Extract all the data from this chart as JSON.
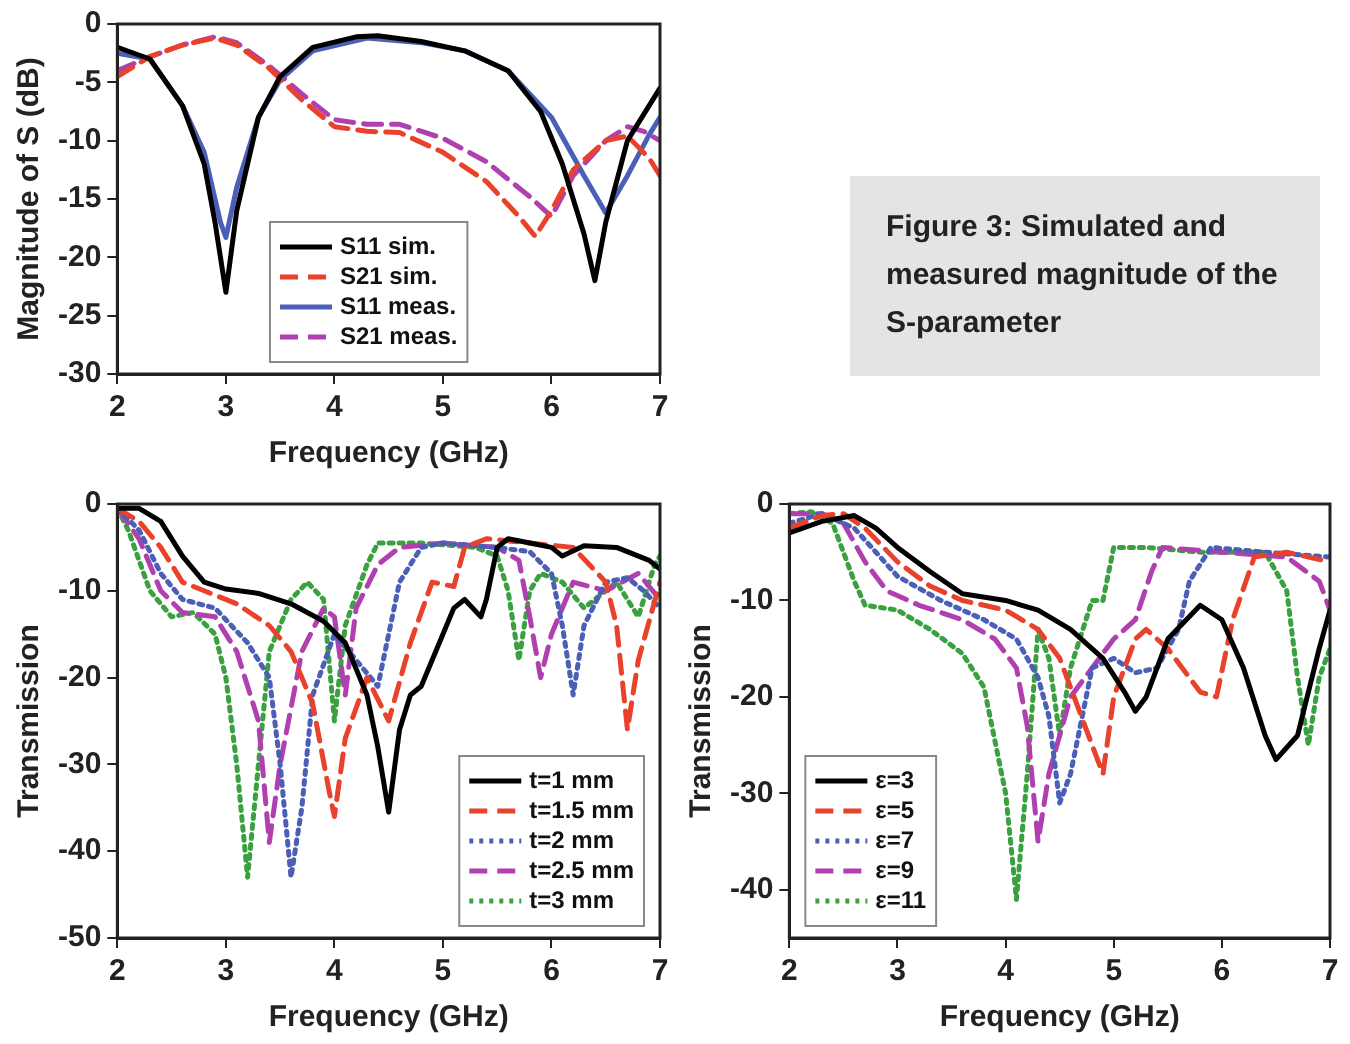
{
  "chart_data": [
    {
      "type": "line",
      "xlabel": "Frequency (GHz)",
      "ylabel": "Magnitude of S (dB)",
      "xlim": [
        2,
        7
      ],
      "ylim": [
        -30,
        0
      ],
      "xticks": [
        2,
        3,
        4,
        5,
        6,
        7
      ],
      "yticks": [
        0,
        -5,
        -10,
        -15,
        -20,
        -25,
        -30
      ],
      "grid": false,
      "legend": "bottom",
      "series": [
        {
          "name": "S11 sim.",
          "color": "#000000",
          "line_style": "solid",
          "x": [
            2,
            2.3,
            2.6,
            2.8,
            2.9,
            3.0,
            3.1,
            3.3,
            3.5,
            3.8,
            4.2,
            4.4,
            4.8,
            5.2,
            5.6,
            5.9,
            6.1,
            6.3,
            6.4,
            6.5,
            6.7,
            6.9,
            7
          ],
          "values": [
            -2,
            -3,
            -7,
            -12,
            -17,
            -23,
            -16,
            -8,
            -4.5,
            -2,
            -1.1,
            -1,
            -1.5,
            -2.3,
            -4,
            -7.5,
            -12,
            -18,
            -22,
            -17,
            -10,
            -7,
            -5.5
          ]
        },
        {
          "name": "S21 sim.",
          "color": "#e8412c",
          "line_style": "dashed",
          "x": [
            2,
            2.3,
            2.6,
            2.9,
            3.1,
            3.4,
            3.7,
            4.0,
            4.3,
            4.6,
            5.0,
            5.4,
            5.7,
            5.85,
            6.0,
            6.2,
            6.5,
            6.7,
            6.9,
            7
          ],
          "values": [
            -4.5,
            -2.8,
            -1.8,
            -1.2,
            -1.8,
            -3.8,
            -6.5,
            -8.8,
            -9.2,
            -9.3,
            -11,
            -13.5,
            -16.5,
            -18.2,
            -16,
            -12.5,
            -10,
            -9.6,
            -11.5,
            -13
          ]
        },
        {
          "name": "S11 meas.",
          "color": "#4a5fb5",
          "line_style": "solid",
          "x": [
            2,
            2.3,
            2.6,
            2.8,
            2.95,
            3.0,
            3.1,
            3.3,
            3.5,
            3.8,
            4.3,
            4.8,
            5.2,
            5.6,
            6.0,
            6.3,
            6.5,
            6.7,
            6.9,
            7
          ],
          "values": [
            -2.5,
            -3,
            -7,
            -11,
            -17,
            -18.3,
            -14,
            -8,
            -4.8,
            -2.3,
            -1.2,
            -1.6,
            -2.3,
            -4,
            -8,
            -13,
            -16.2,
            -13,
            -9.5,
            -8
          ]
        },
        {
          "name": "S21 meas.",
          "color": "#b040b0",
          "line_style": "dashed",
          "x": [
            2,
            2.3,
            2.6,
            2.9,
            3.1,
            3.4,
            3.7,
            4.0,
            4.3,
            4.6,
            5.0,
            5.4,
            5.8,
            6.0,
            6.2,
            6.5,
            6.7,
            6.85,
            7
          ],
          "values": [
            -4,
            -2.8,
            -1.8,
            -1.1,
            -1.6,
            -3.6,
            -6,
            -8.2,
            -8.6,
            -8.6,
            -9.8,
            -11.8,
            -14.8,
            -16.5,
            -13,
            -10,
            -8.8,
            -9.2,
            -10
          ]
        }
      ]
    },
    {
      "type": "other",
      "title": "Figure 3: Simulated and measured magnitude of the S-parameter"
    },
    {
      "type": "line",
      "xlabel": "Frequency (GHz)",
      "ylabel": "Transmission",
      "xlim": [
        2,
        7
      ],
      "ylim": [
        -50,
        0
      ],
      "xticks": [
        2,
        3,
        4,
        5,
        6,
        7
      ],
      "yticks": [
        0,
        -10,
        -20,
        -30,
        -40,
        -50
      ],
      "grid": false,
      "legend": "bottom right",
      "series": [
        {
          "name": "t=1 mm",
          "color": "#000000",
          "line_style": "solid",
          "x": [
            2,
            2.2,
            2.4,
            2.6,
            2.8,
            3.0,
            3.3,
            3.6,
            3.9,
            4.1,
            4.3,
            4.4,
            4.5,
            4.6,
            4.7,
            4.8,
            4.9,
            5.1,
            5.2,
            5.35,
            5.4,
            5.5,
            5.6,
            5.8,
            6.0,
            6.1,
            6.3,
            6.6,
            6.9,
            7
          ],
          "values": [
            -0.5,
            -0.5,
            -2,
            -6,
            -9,
            -9.8,
            -10.3,
            -11.5,
            -13.5,
            -16,
            -22,
            -28,
            -35.5,
            -26,
            -22,
            -21,
            -18,
            -12,
            -11,
            -13,
            -11,
            -5,
            -4,
            -4.5,
            -5,
            -6,
            -4.8,
            -5,
            -6.5,
            -7.5
          ]
        },
        {
          "name": "t=1.5 mm",
          "color": "#e8412c",
          "line_style": "dashed",
          "x": [
            2,
            2.2,
            2.4,
            2.6,
            2.8,
            3.1,
            3.4,
            3.6,
            3.8,
            3.95,
            4.0,
            4.1,
            4.3,
            4.5,
            4.7,
            4.9,
            5.1,
            5.2,
            5.4,
            5.8,
            6.2,
            6.5,
            6.6,
            6.7,
            6.8,
            7
          ],
          "values": [
            -0.5,
            -2,
            -5,
            -9,
            -10,
            -11.5,
            -14,
            -17,
            -23,
            -33,
            -36,
            -27,
            -20,
            -25,
            -16,
            -9,
            -9.5,
            -5,
            -4,
            -4.5,
            -5,
            -9,
            -14,
            -26,
            -18,
            -9
          ]
        },
        {
          "name": "t=2 mm",
          "color": "#4a5fb5",
          "line_style": "dotted",
          "x": [
            2,
            2.2,
            2.4,
            2.6,
            2.9,
            3.2,
            3.4,
            3.5,
            3.6,
            3.7,
            3.8,
            4.0,
            4.2,
            4.4,
            4.5,
            4.6,
            4.8,
            5.0,
            5.5,
            5.8,
            6.0,
            6.1,
            6.2,
            6.3,
            6.5,
            6.7,
            6.85,
            7
          ],
          "values": [
            -0.5,
            -3,
            -8,
            -11,
            -12,
            -16,
            -20,
            -30,
            -43,
            -35,
            -22,
            -15,
            -18,
            -21,
            -15,
            -9,
            -5,
            -4.5,
            -5,
            -5.5,
            -8,
            -14,
            -22,
            -14,
            -9,
            -8.5,
            -10,
            -12
          ]
        },
        {
          "name": "t=2.5 mm",
          "color": "#b040b0",
          "line_style": "dashed",
          "x": [
            2,
            2.2,
            2.4,
            2.6,
            2.9,
            3.1,
            3.3,
            3.4,
            3.5,
            3.7,
            3.9,
            4.0,
            4.1,
            4.2,
            4.4,
            4.6,
            5.0,
            5.5,
            5.7,
            5.8,
            5.9,
            6.0,
            6.2,
            6.5,
            6.8,
            7
          ],
          "values": [
            -0.5,
            -4,
            -10,
            -12.5,
            -13,
            -17,
            -25,
            -39,
            -30,
            -17,
            -12,
            -13,
            -22,
            -12,
            -7,
            -5,
            -4.5,
            -5,
            -6.5,
            -13,
            -20,
            -15,
            -9,
            -10,
            -8,
            -11
          ]
        },
        {
          "name": "t=3 mm",
          "color": "#3aa040",
          "line_style": "dotted",
          "x": [
            2,
            2.1,
            2.3,
            2.5,
            2.7,
            2.9,
            3.0,
            3.1,
            3.2,
            3.3,
            3.4,
            3.6,
            3.75,
            3.9,
            4.0,
            4.1,
            4.3,
            4.4,
            4.8,
            5.3,
            5.5,
            5.6,
            5.7,
            5.8,
            5.9,
            6.1,
            6.3,
            6.5,
            6.6,
            6.8,
            6.95,
            7
          ],
          "values": [
            -0.5,
            -3,
            -10,
            -13,
            -12.5,
            -15,
            -20,
            -30,
            -43,
            -30,
            -17,
            -11,
            -9,
            -11,
            -25,
            -14,
            -7,
            -4.5,
            -4.5,
            -5,
            -6,
            -10,
            -18,
            -10,
            -8,
            -9,
            -12,
            -10,
            -9,
            -13,
            -7,
            -6
          ]
        }
      ]
    },
    {
      "type": "line",
      "xlabel": "Frequency (GHz)",
      "ylabel": "Transmission",
      "xlim": [
        2,
        7
      ],
      "ylim": [
        -45,
        0
      ],
      "xticks": [
        2,
        3,
        4,
        5,
        6,
        7
      ],
      "yticks": [
        0,
        -10,
        -20,
        -30,
        -40
      ],
      "grid": false,
      "legend": "bottom left",
      "series": [
        {
          "name": "ε=3",
          "color": "#000000",
          "line_style": "solid",
          "x": [
            2,
            2.3,
            2.6,
            2.8,
            3.0,
            3.3,
            3.6,
            4.0,
            4.3,
            4.6,
            4.9,
            5.1,
            5.2,
            5.3,
            5.5,
            5.8,
            6.0,
            6.2,
            6.4,
            6.5,
            6.7,
            6.9,
            7
          ],
          "values": [
            -3,
            -1.8,
            -1.2,
            -2.5,
            -4.5,
            -7,
            -9.3,
            -10,
            -11,
            -13,
            -16,
            -19.5,
            -21.5,
            -20,
            -14,
            -10.5,
            -12,
            -17,
            -24,
            -26.5,
            -24,
            -15,
            -11
          ]
        },
        {
          "name": "ε=5",
          "color": "#e8412c",
          "line_style": "dashed",
          "x": [
            2,
            2.3,
            2.5,
            2.7,
            3.0,
            3.3,
            3.6,
            4.0,
            4.3,
            4.5,
            4.7,
            4.9,
            5.0,
            5.2,
            5.3,
            5.5,
            5.8,
            5.95,
            6.1,
            6.3,
            6.6,
            7
          ],
          "values": [
            -2.5,
            -1.2,
            -1,
            -2.5,
            -6,
            -8.5,
            -10,
            -11,
            -13,
            -16,
            -22,
            -28,
            -20,
            -14,
            -13,
            -15,
            -19.5,
            -20,
            -12,
            -5.5,
            -5,
            -6
          ]
        },
        {
          "name": "ε=7",
          "color": "#4a5fb5",
          "line_style": "dotted",
          "x": [
            2,
            2.3,
            2.6,
            2.8,
            3.0,
            3.4,
            3.8,
            4.1,
            4.3,
            4.4,
            4.5,
            4.6,
            4.8,
            5.0,
            5.2,
            5.4,
            5.6,
            5.7,
            5.9,
            6.4,
            7
          ],
          "values": [
            -2,
            -1,
            -2.5,
            -5,
            -7.5,
            -10,
            -12,
            -14,
            -18,
            -22,
            -31,
            -28,
            -17,
            -16,
            -17.5,
            -17,
            -13,
            -8,
            -4.5,
            -5,
            -5.5
          ]
        },
        {
          "name": "ε=9",
          "color": "#b040b0",
          "line_style": "dashed",
          "x": [
            2,
            2.3,
            2.5,
            2.7,
            2.9,
            3.2,
            3.6,
            3.9,
            4.1,
            4.2,
            4.3,
            4.4,
            4.6,
            4.8,
            5.0,
            5.2,
            5.35,
            5.45,
            6.0,
            6.6,
            6.9,
            7
          ],
          "values": [
            -1,
            -1,
            -2,
            -6,
            -9,
            -10.5,
            -12,
            -14,
            -17,
            -23,
            -35,
            -28,
            -20,
            -17,
            -14,
            -12,
            -7,
            -4.5,
            -5,
            -5.5,
            -8,
            -11
          ]
        },
        {
          "name": "ε=11",
          "color": "#3aa040",
          "line_style": "dotted",
          "x": [
            2,
            2.2,
            2.4,
            2.6,
            2.7,
            3.0,
            3.3,
            3.6,
            3.8,
            4.0,
            4.1,
            4.2,
            4.3,
            4.4,
            4.5,
            4.6,
            4.8,
            4.9,
            5.0,
            5.3,
            5.8,
            6.4,
            6.6,
            6.7,
            6.8,
            6.9,
            7
          ],
          "values": [
            -1,
            -0.8,
            -2,
            -8,
            -10.5,
            -11,
            -13,
            -15.5,
            -19,
            -30,
            -41,
            -28,
            -13,
            -16,
            -24,
            -17,
            -10,
            -10,
            -4.5,
            -4.5,
            -5,
            -5,
            -9,
            -18,
            -25,
            -18,
            -15
          ]
        }
      ]
    }
  ]
}
